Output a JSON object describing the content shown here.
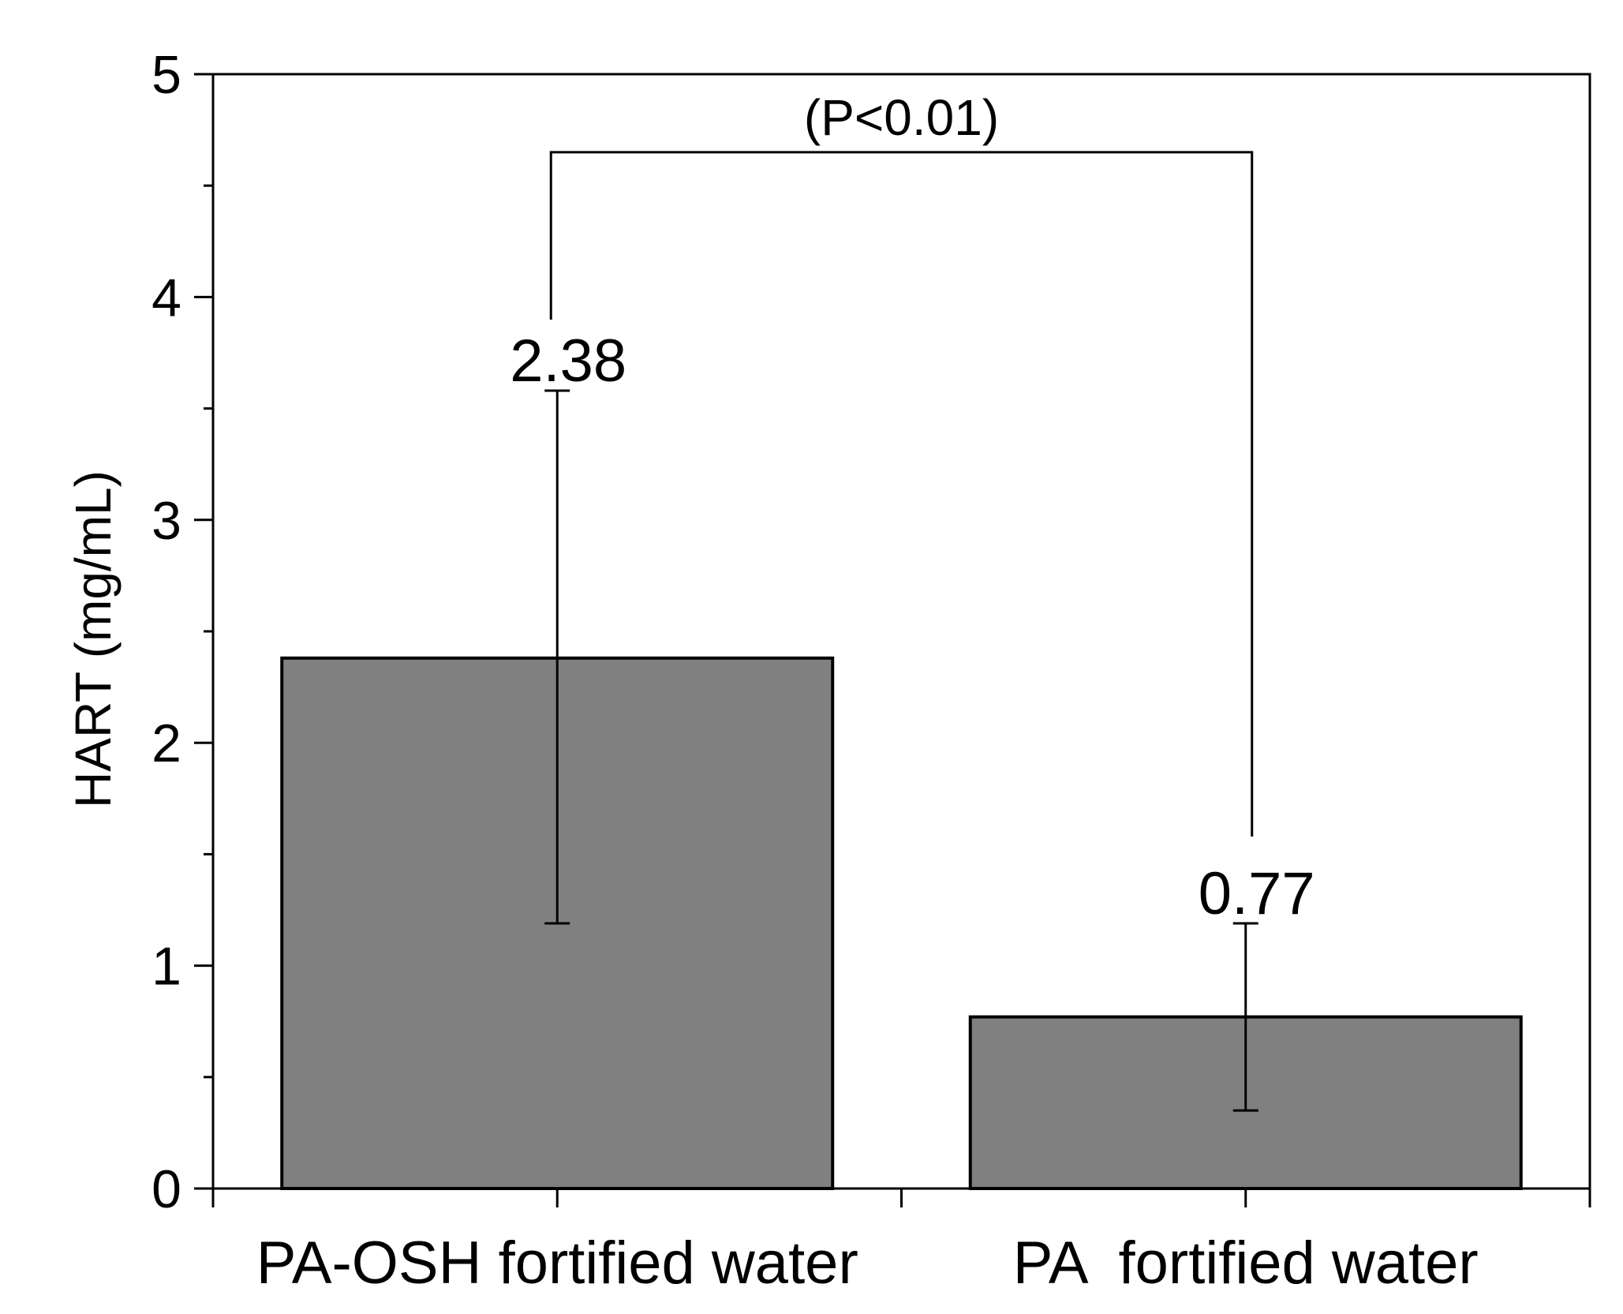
{
  "chart_data": {
    "type": "bar",
    "title": "",
    "xlabel": "",
    "ylabel": "HART (mg/mL)",
    "ylim": [
      0,
      5
    ],
    "yticks": [
      0,
      1,
      2,
      3,
      4,
      5
    ],
    "yminor_step": 0.5,
    "categories": [
      "PA-OSH fortified water",
      "PA  fortified water"
    ],
    "values": [
      2.38,
      0.77
    ],
    "error_upper": [
      3.58,
      1.19
    ],
    "error_lower": [
      1.19,
      0.35
    ],
    "data_labels": [
      "2.38",
      "0.77"
    ],
    "bar_color": "#808080",
    "significance": {
      "label": "(P<0.01)",
      "between": [
        0,
        1
      ],
      "level": 4.65
    },
    "grid": false,
    "legend": "none"
  }
}
